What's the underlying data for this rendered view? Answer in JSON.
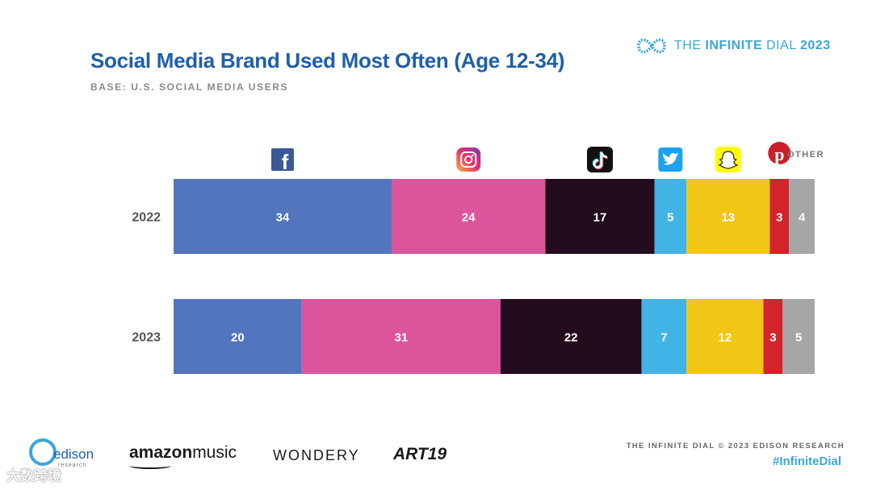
{
  "header": {
    "title": "Social Media Brand Used Most Often (Age 12-34)",
    "subtitle": "BASE: U.S. SOCIAL MEDIA USERS"
  },
  "brand": {
    "prefix": "THE ",
    "name": "INFINITE",
    "suffix": " DIAL",
    "year": "2023"
  },
  "chart_data": {
    "type": "bar",
    "orientation": "horizontal",
    "stacked": true,
    "title": "Social Media Brand Used Most Often (Age 12-34)",
    "categories": [
      "2022",
      "2023"
    ],
    "series": [
      {
        "name": "Facebook",
        "color": "#5375bd",
        "icon": "facebook-icon",
        "values": [
          34,
          20
        ]
      },
      {
        "name": "Instagram",
        "color": "#dc549c",
        "icon": "instagram-icon",
        "values": [
          24,
          31
        ]
      },
      {
        "name": "TikTok",
        "color": "#240c1f",
        "icon": "tiktok-icon",
        "values": [
          17,
          22
        ]
      },
      {
        "name": "Twitter",
        "color": "#42b3e5",
        "icon": "twitter-icon",
        "values": [
          5,
          7
        ]
      },
      {
        "name": "Snapchat",
        "color": "#f2c617",
        "icon": "snapchat-icon",
        "values": [
          13,
          12
        ]
      },
      {
        "name": "Pinterest",
        "color": "#d2242a",
        "icon": "pinterest-icon",
        "values": [
          3,
          3
        ]
      },
      {
        "name": "OTHER",
        "color": "#a6a6a6",
        "values": [
          4,
          5
        ]
      }
    ],
    "other_label": "OTHER"
  },
  "logos": {
    "edison": "edison",
    "edison_sub": "research",
    "amazon": "amazon",
    "amazon_music": "music",
    "wondery": "WONDERY",
    "art19": "ART19"
  },
  "footer": {
    "copyright": "THE INFINITE DIAL   © 2023 EDISON RESEARCH",
    "hashtag": "#InfiniteDial"
  },
  "watermark": {
    "text": "大数跨境"
  }
}
